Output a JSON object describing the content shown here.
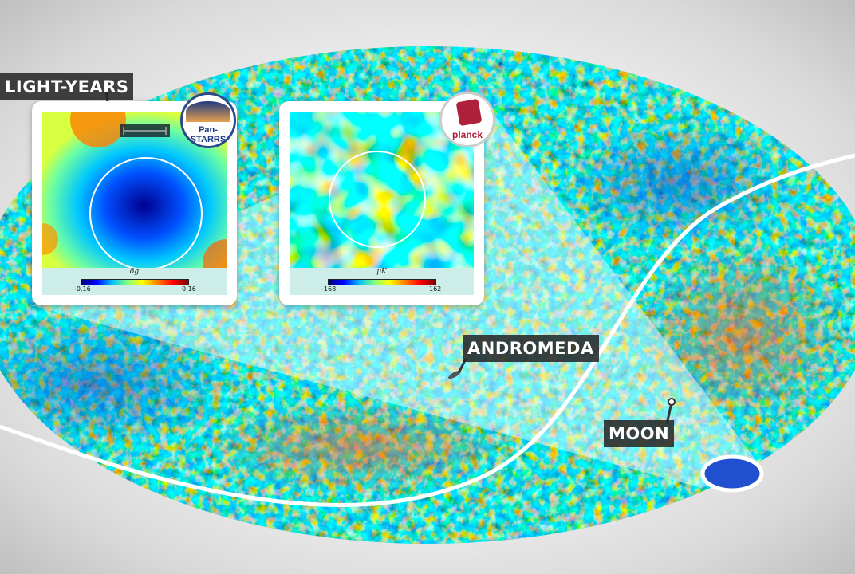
{
  "labels": {
    "scale": "LIGHT-YEARS",
    "andromeda": "ANDROMEDA",
    "moon": "MOON"
  },
  "insets": [
    {
      "logo": "Pan-STARRS",
      "colorbar_label": "δg",
      "min": "-0.16",
      "max": "0.16"
    },
    {
      "logo": "planck",
      "colorbar_label": "μK",
      "min": "-168",
      "max": "162"
    }
  ],
  "colors": {
    "label_bg": "#282828",
    "curve": "#ffffff",
    "logo_ring": "#2a4a8a",
    "planck_red": "#b0203a"
  }
}
